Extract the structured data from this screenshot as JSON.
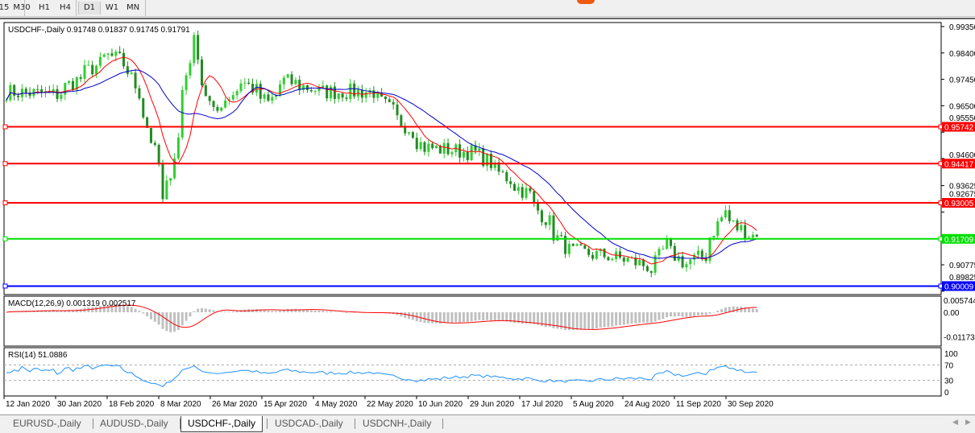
{
  "toolbar": {
    "timeframes": [
      "15",
      "M30",
      "H1",
      "H4",
      "D1",
      "W1",
      "MN"
    ],
    "active": "D1"
  },
  "chart": {
    "header": "USDCHF-,Daily  0.91748 0.91837 0.91745 0.91791",
    "price_axis": [
      "0.99350",
      "0.98400",
      "0.97450",
      "0.96500",
      "0.95550",
      "0.94600",
      "0.93625",
      "0.92675",
      "0.90775",
      "0.89825"
    ],
    "price_lines": [
      {
        "label": "0.95742",
        "value": 0.95742,
        "color": "#ff0000"
      },
      {
        "label": "0.94417",
        "value": 0.94417,
        "color": "#ff0000"
      },
      {
        "label": "0.93005",
        "value": 0.93005,
        "color": "#ff0000"
      },
      {
        "label": "0.91709",
        "value": 0.91709,
        "color": "#00e000"
      },
      {
        "label": "0.90009",
        "value": 0.90009,
        "color": "#0000ff"
      }
    ],
    "bull_color": "#32cd32",
    "bear_color": "#228b22",
    "ma_fast_color": "#ff0000",
    "ma_slow_color": "#0000cd"
  },
  "macd": {
    "header": "MACD(12,26,9) 0.001319 0.002517",
    "axis": [
      "0.005744",
      "0.00",
      "-0.011738"
    ]
  },
  "rsi": {
    "header": "RSI(14) 51.0886",
    "axis": [
      "100",
      "70",
      "30",
      "0"
    ],
    "color": "#1e90ff"
  },
  "time_axis": [
    "12 Jan 2020",
    "30 Jan 2020",
    "18 Feb 2020",
    "8 Mar 2020",
    "26 Mar 2020",
    "15 Apr 2020",
    "4 May 2020",
    "22 May 2020",
    "10 Jun 2020",
    "29 Jun 2020",
    "17 Jul 2020",
    "5 Aug 2020",
    "24 Aug 2020",
    "11 Sep 2020",
    "30 Sep 2020"
  ],
  "tabs": [
    "EURUSD-,Daily",
    "AUDUSD-,Daily",
    "USDCHF-,Daily",
    "USDCAD-,Daily",
    "USDCNH-,Daily"
  ],
  "active_tab": "USDCHF-,Daily",
  "chart_data": {
    "type": "candlestick",
    "symbol": "USDCHF-",
    "timeframe": "Daily",
    "ylim": [
      0.89825,
      0.9935
    ],
    "key_closes": [
      [
        "2020-01-13",
        0.97
      ],
      [
        "2020-01-30",
        0.969
      ],
      [
        "2020-02-18",
        0.983
      ],
      [
        "2020-02-24",
        0.98
      ],
      [
        "2020-03-02",
        0.962
      ],
      [
        "2020-03-09",
        0.93
      ],
      [
        "2020-03-19",
        0.988
      ],
      [
        "2020-03-26",
        0.962
      ],
      [
        "2020-04-06",
        0.974
      ],
      [
        "2020-04-15",
        0.966
      ],
      [
        "2020-04-21",
        0.974
      ],
      [
        "2020-05-04",
        0.97
      ],
      [
        "2020-05-22",
        0.97
      ],
      [
        "2020-06-05",
        0.956
      ],
      [
        "2020-06-10",
        0.95
      ],
      [
        "2020-06-29",
        0.948
      ],
      [
        "2020-07-08",
        0.94
      ],
      [
        "2020-07-17",
        0.933
      ],
      [
        "2020-07-31",
        0.913
      ],
      [
        "2020-08-05",
        0.912
      ],
      [
        "2020-08-14",
        0.911
      ],
      [
        "2020-08-24",
        0.909
      ],
      [
        "2020-08-31",
        0.906
      ],
      [
        "2020-09-04",
        0.915
      ],
      [
        "2020-09-11",
        0.908
      ],
      [
        "2020-09-18",
        0.911
      ],
      [
        "2020-09-25",
        0.927
      ],
      [
        "2020-09-30",
        0.921
      ],
      [
        "2020-10-07",
        0.9179
      ]
    ],
    "last_bar": {
      "open": 0.91748,
      "high": 0.91837,
      "low": 0.91745,
      "close": 0.91791
    },
    "indicators": {
      "macd": {
        "params": [
          12,
          26,
          9
        ],
        "main": 0.001319,
        "signal": 0.002517
      },
      "rsi": {
        "period": 14,
        "value": 51.0886,
        "levels": [
          70,
          30
        ]
      }
    }
  }
}
